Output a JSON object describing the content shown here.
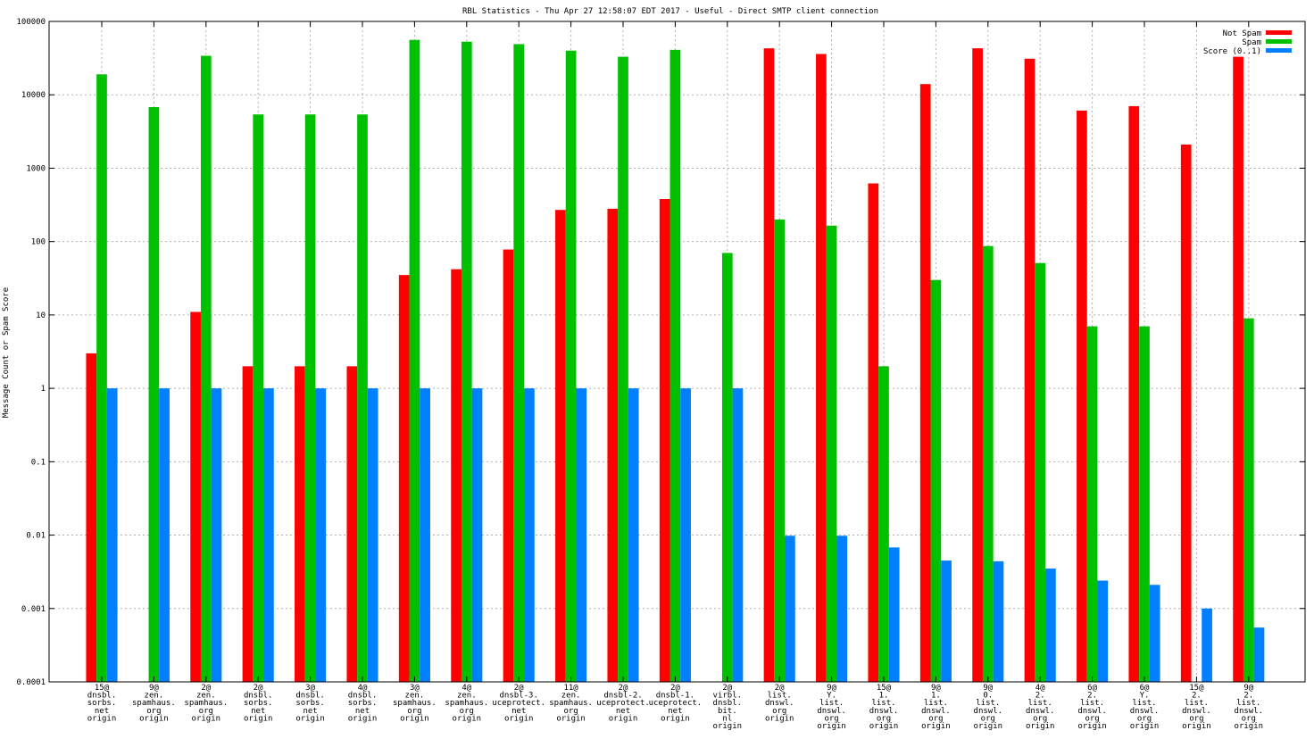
{
  "chart_data": {
    "type": "bar",
    "title": "RBL Statistics - Thu Apr 27 12:58:07 EDT 2017 - Useful - Direct SMTP client connection",
    "xlabel": "",
    "ylabel": "Message Count or Spam Score",
    "yscale": "log",
    "ylim": [
      0.0001,
      100000
    ],
    "grid": true,
    "legend_position": "top-right",
    "yticks": [
      {
        "value": 0.0001,
        "label": "0.0001"
      },
      {
        "value": 0.001,
        "label": "0.001"
      },
      {
        "value": 0.01,
        "label": "0.01"
      },
      {
        "value": 0.1,
        "label": "0.1"
      },
      {
        "value": 1,
        "label": "1"
      },
      {
        "value": 10,
        "label": "10"
      },
      {
        "value": 100,
        "label": "100"
      },
      {
        "value": 1000,
        "label": "1000"
      },
      {
        "value": 10000,
        "label": "10000"
      },
      {
        "value": 100000,
        "label": "100000"
      }
    ],
    "categories": [
      [
        "15@",
        "dnsbl.",
        "sorbs.",
        "net",
        "origin"
      ],
      [
        "9@",
        "zen.",
        "spamhaus.",
        "org",
        "origin"
      ],
      [
        "2@",
        "zen.",
        "spamhaus.",
        "org",
        "origin"
      ],
      [
        "2@",
        "dnsbl.",
        "sorbs.",
        "net",
        "origin"
      ],
      [
        "3@",
        "dnsbl.",
        "sorbs.",
        "net",
        "origin"
      ],
      [
        "4@",
        "dnsbl.",
        "sorbs.",
        "net",
        "origin"
      ],
      [
        "3@",
        "zen.",
        "spamhaus.",
        "org",
        "origin"
      ],
      [
        "4@",
        "zen.",
        "spamhaus.",
        "org",
        "origin"
      ],
      [
        "2@",
        "dnsbl-3.",
        "uceprotect.",
        "net",
        "origin"
      ],
      [
        "11@",
        "zen.",
        "spamhaus.",
        "org",
        "origin"
      ],
      [
        "2@",
        "dnsbl-2.",
        "uceprotect.",
        "net",
        "origin"
      ],
      [
        "2@",
        "dnsbl-1.",
        "uceprotect.",
        "net",
        "origin"
      ],
      [
        "2@",
        "virbl.",
        "dnsbl.",
        "bit.",
        "nl",
        "origin"
      ],
      [
        "2@",
        "list.",
        "dnswl.",
        "org",
        "origin"
      ],
      [
        "9@",
        "Y.",
        "list.",
        "dnswl.",
        "org",
        "origin"
      ],
      [
        "15@",
        "1.",
        "list.",
        "dnswl.",
        "org",
        "origin"
      ],
      [
        "9@",
        "1.",
        "list.",
        "dnswl.",
        "org",
        "origin"
      ],
      [
        "9@",
        "0.",
        "list.",
        "dnswl.",
        "org",
        "origin"
      ],
      [
        "4@",
        "2.",
        "list.",
        "dnswl.",
        "org",
        "origin"
      ],
      [
        "6@",
        "2.",
        "list.",
        "dnswl.",
        "org",
        "origin"
      ],
      [
        "6@",
        "Y.",
        "list.",
        "dnswl.",
        "org",
        "origin"
      ],
      [
        "15@",
        "2.",
        "list.",
        "dnswl.",
        "org",
        "origin"
      ],
      [
        "9@",
        "2.",
        "list.",
        "dnswl.",
        "org",
        "origin"
      ]
    ],
    "series": [
      {
        "name": "Not Spam",
        "color": "#ff0000",
        "values": [
          3,
          null,
          11,
          2,
          2,
          2,
          35,
          42,
          78,
          270,
          280,
          380,
          null,
          43000,
          36000,
          620,
          14000,
          43000,
          31000,
          6100,
          7000,
          2100,
          33000
        ]
      },
      {
        "name": "Spam",
        "color": "#00c000",
        "values": [
          19000,
          6800,
          34000,
          5400,
          5400,
          5400,
          56000,
          53000,
          49000,
          40000,
          33000,
          41000,
          70,
          200,
          165,
          2,
          30,
          87,
          51,
          7,
          7,
          null,
          9
        ]
      },
      {
        "name": "Score (0..1)",
        "color": "#0080ff",
        "values": [
          1,
          1,
          1,
          1,
          1,
          1,
          1,
          1,
          1,
          1,
          1,
          1,
          1,
          0.0098,
          0.0098,
          0.0068,
          0.0045,
          0.0044,
          0.0035,
          0.0024,
          0.0021,
          0.001,
          0.00055
        ]
      }
    ]
  }
}
